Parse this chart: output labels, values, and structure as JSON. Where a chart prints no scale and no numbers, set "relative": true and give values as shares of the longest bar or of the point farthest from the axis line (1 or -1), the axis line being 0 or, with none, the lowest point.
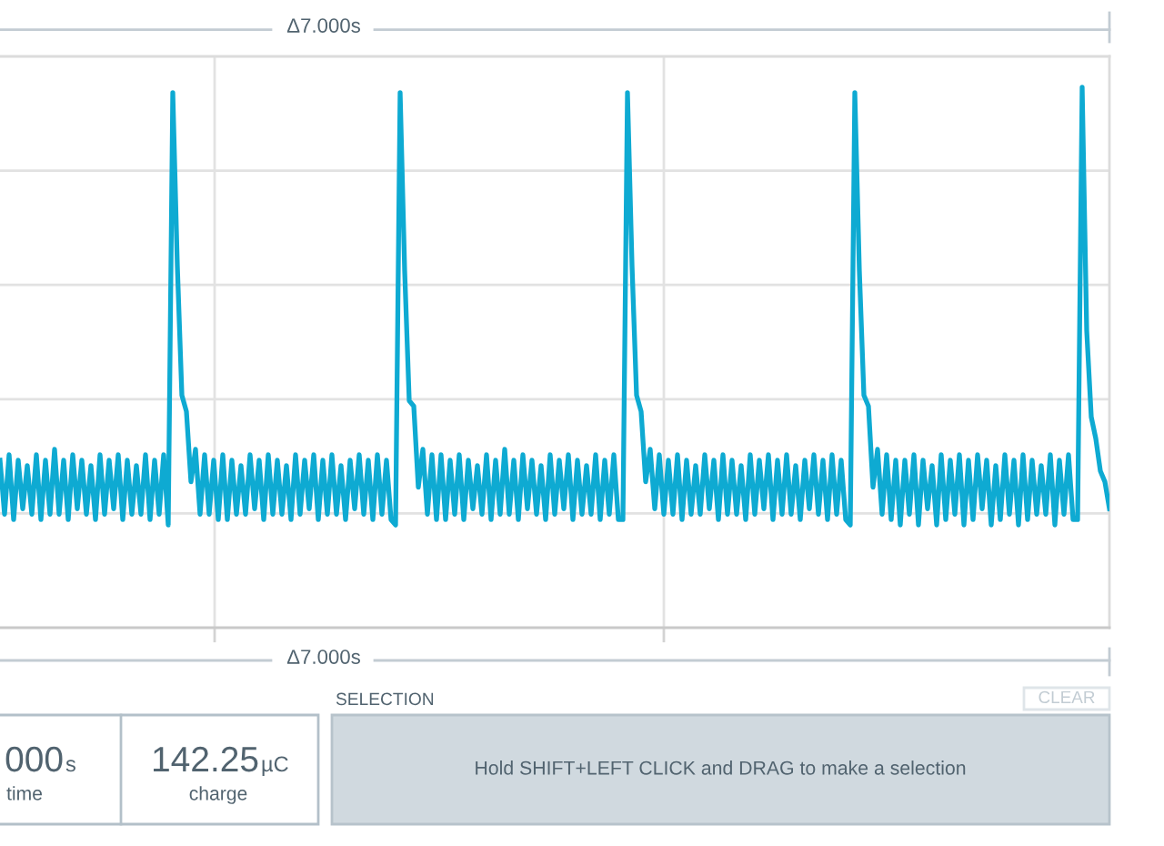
{
  "chart_data": {
    "type": "line",
    "relative": true,
    "grid": true,
    "categories": [
      null,
      null,
      null,
      null,
      null,
      null,
      null,
      null,
      null,
      null,
      null,
      null,
      null,
      null,
      null,
      null,
      null,
      null,
      null,
      null,
      null,
      null,
      null,
      null,
      null,
      null,
      null,
      null,
      null,
      null,
      null,
      null,
      null,
      null,
      null,
      null,
      null,
      null,
      null,
      null,
      null,
      null,
      null,
      null,
      null,
      null,
      null,
      null,
      null,
      null,
      null,
      null,
      null,
      null,
      null,
      null,
      null,
      null,
      null,
      null,
      null,
      null,
      null,
      null,
      null,
      null,
      null,
      null,
      null,
      null,
      null,
      null,
      null,
      null,
      null,
      null,
      null,
      null,
      null,
      null,
      null,
      null,
      null,
      null,
      null,
      null,
      null,
      null,
      null,
      null,
      null,
      null,
      null,
      null,
      null,
      null,
      null,
      null,
      null,
      null,
      null,
      null,
      null,
      null,
      null,
      null,
      null,
      null,
      null,
      null,
      null,
      null,
      null,
      null,
      null,
      null,
      null,
      null,
      null,
      null,
      null,
      null,
      null,
      null,
      null,
      null,
      null,
      null,
      null,
      null,
      null,
      null,
      null,
      null,
      null,
      null,
      null,
      null,
      null,
      null,
      null,
      null,
      null,
      null,
      null,
      null,
      null,
      null,
      null,
      null,
      null,
      null,
      null,
      null,
      null,
      null,
      null,
      null,
      null,
      null,
      null,
      null,
      null,
      null,
      null,
      null,
      null,
      null,
      null,
      null,
      null,
      null,
      null,
      null,
      null,
      null,
      null,
      null,
      null,
      null,
      null,
      null,
      null,
      null,
      null,
      null,
      null,
      null,
      null,
      null,
      null,
      null,
      null,
      null,
      null,
      null,
      null,
      null,
      null,
      null,
      null,
      null,
      null,
      null,
      null,
      null,
      null,
      null,
      null,
      null,
      null,
      null,
      null,
      null,
      null,
      null,
      null,
      null,
      null,
      null,
      null,
      null,
      null,
      null,
      null,
      null,
      null,
      null,
      null,
      null,
      null,
      null,
      null,
      null,
      null,
      null,
      null,
      null,
      null,
      null,
      null,
      null,
      null,
      null,
      null
    ],
    "series": [
      {
        "color": "#0eaad2",
        "values": [
          0.31,
          0.21,
          0.32,
          0.2,
          0.31,
          0.22,
          0.3,
          0.21,
          0.32,
          0.2,
          0.31,
          0.21,
          0.33,
          0.21,
          0.31,
          0.2,
          0.32,
          0.22,
          0.31,
          0.21,
          0.3,
          0.2,
          0.32,
          0.21,
          0.31,
          0.22,
          0.32,
          0.2,
          0.31,
          0.21,
          0.3,
          0.21,
          0.32,
          0.2,
          0.31,
          0.21,
          0.32,
          0.19,
          0.99,
          0.67,
          0.43,
          0.4,
          0.27,
          0.33,
          0.21,
          0.32,
          0.21,
          0.31,
          0.2,
          0.32,
          0.2,
          0.31,
          0.21,
          0.3,
          0.21,
          0.32,
          0.22,
          0.31,
          0.2,
          0.32,
          0.21,
          0.31,
          0.21,
          0.3,
          0.2,
          0.32,
          0.21,
          0.31,
          0.22,
          0.32,
          0.2,
          0.31,
          0.21,
          0.32,
          0.21,
          0.3,
          0.2,
          0.31,
          0.22,
          0.32,
          0.21,
          0.31,
          0.2,
          0.32,
          0.21,
          0.31,
          0.2,
          0.19,
          0.99,
          0.66,
          0.42,
          0.41,
          0.26,
          0.33,
          0.21,
          0.32,
          0.2,
          0.32,
          0.2,
          0.31,
          0.21,
          0.32,
          0.2,
          0.31,
          0.22,
          0.3,
          0.21,
          0.32,
          0.2,
          0.31,
          0.21,
          0.33,
          0.21,
          0.31,
          0.2,
          0.32,
          0.22,
          0.31,
          0.21,
          0.3,
          0.2,
          0.32,
          0.21,
          0.31,
          0.22,
          0.32,
          0.2,
          0.31,
          0.21,
          0.3,
          0.21,
          0.32,
          0.2,
          0.31,
          0.21,
          0.32,
          0.2,
          0.2,
          0.99,
          0.67,
          0.43,
          0.4,
          0.27,
          0.33,
          0.22,
          0.32,
          0.21,
          0.31,
          0.21,
          0.32,
          0.2,
          0.31,
          0.21,
          0.3,
          0.21,
          0.32,
          0.22,
          0.31,
          0.2,
          0.32,
          0.21,
          0.31,
          0.21,
          0.3,
          0.2,
          0.32,
          0.21,
          0.31,
          0.22,
          0.32,
          0.2,
          0.31,
          0.21,
          0.32,
          0.21,
          0.3,
          0.2,
          0.31,
          0.22,
          0.32,
          0.21,
          0.31,
          0.2,
          0.32,
          0.21,
          0.31,
          0.2,
          0.19,
          0.99,
          0.66,
          0.43,
          0.41,
          0.26,
          0.33,
          0.21,
          0.32,
          0.2,
          0.31,
          0.19,
          0.31,
          0.21,
          0.32,
          0.19,
          0.31,
          0.22,
          0.3,
          0.19,
          0.32,
          0.2,
          0.31,
          0.21,
          0.32,
          0.19,
          0.31,
          0.2,
          0.32,
          0.22,
          0.31,
          0.19,
          0.3,
          0.2,
          0.32,
          0.21,
          0.31,
          0.19,
          0.32,
          0.2,
          0.31,
          0.21,
          0.3,
          0.21,
          0.32,
          0.19,
          0.31,
          0.21,
          0.32,
          0.2,
          0.2,
          1.0,
          0.55,
          0.39,
          0.35,
          0.29,
          0.27,
          0.22
        ]
      }
    ],
    "annotations": [
      "Δ7.000s",
      "Δ7.000s",
      "000s",
      "time",
      "142.25µC",
      "charge",
      "SELECTION",
      "CLEAR",
      "Hold SHIFT+LEFT CLICK and DRAG to make a selection"
    ]
  }
}
